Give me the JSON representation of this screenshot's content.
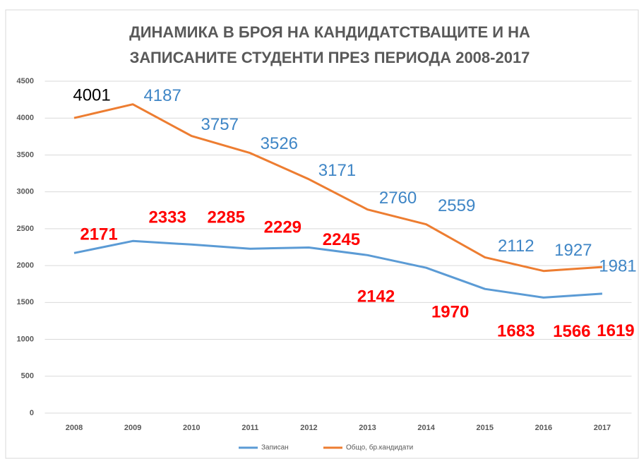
{
  "chart_data": {
    "type": "line",
    "title": [
      "ДИНАМИКА В БРОЯ НА КАНДИДАТСТВАЩИТЕ И НА",
      "ЗАПИСАНИТЕ СТУДЕНТИ ПРЕЗ ПЕРИОДА 2008-2017"
    ],
    "categories": [
      "2008",
      "2009",
      "2010",
      "2011",
      "2012",
      "2013",
      "2014",
      "2015",
      "2016",
      "2017"
    ],
    "series": [
      {
        "name": "Записан",
        "color": "#5b9bd5",
        "values": [
          2171,
          2333,
          2285,
          2229,
          2245,
          2142,
          1970,
          1683,
          1566,
          1619
        ]
      },
      {
        "name": "Общо, бр.кандидати",
        "color": "#ed7d31",
        "values": [
          4001,
          4187,
          3757,
          3526,
          3171,
          2760,
          2559,
          2112,
          1927,
          1981
        ]
      }
    ],
    "ylim": [
      0,
      4500
    ],
    "yticks": [
      0,
      500,
      1000,
      1500,
      2000,
      2500,
      3000,
      3500,
      4000,
      4500
    ],
    "grid": true,
    "legend": "bottom"
  }
}
